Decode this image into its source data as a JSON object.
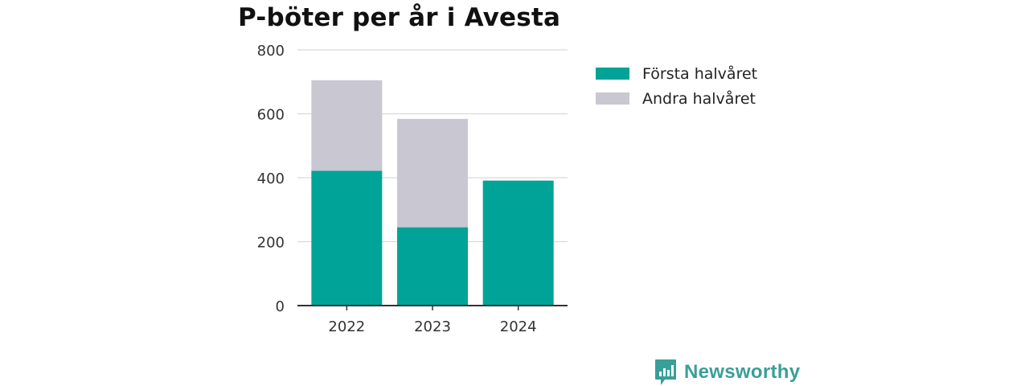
{
  "chart_data": {
    "type": "bar",
    "stacked": true,
    "title": "P-böter per år i Avesta",
    "xlabel": "",
    "ylabel": "",
    "categories": [
      "2022",
      "2023",
      "2024"
    ],
    "series": [
      {
        "name": "Första halvåret",
        "values": [
          422,
          245,
          391
        ],
        "color": "#00a398"
      },
      {
        "name": "Andra halvåret",
        "values": [
          283,
          339,
          null
        ],
        "color": "#c8c7d2"
      }
    ],
    "ylim": [
      0,
      800
    ],
    "yticks": [
      "0",
      "200",
      "400",
      "600",
      "800"
    ],
    "grid": true,
    "legend": "right"
  },
  "brand": {
    "name": "Newsworthy",
    "color": "#3a9e99",
    "icon": "newsworthy-logo-icon"
  }
}
